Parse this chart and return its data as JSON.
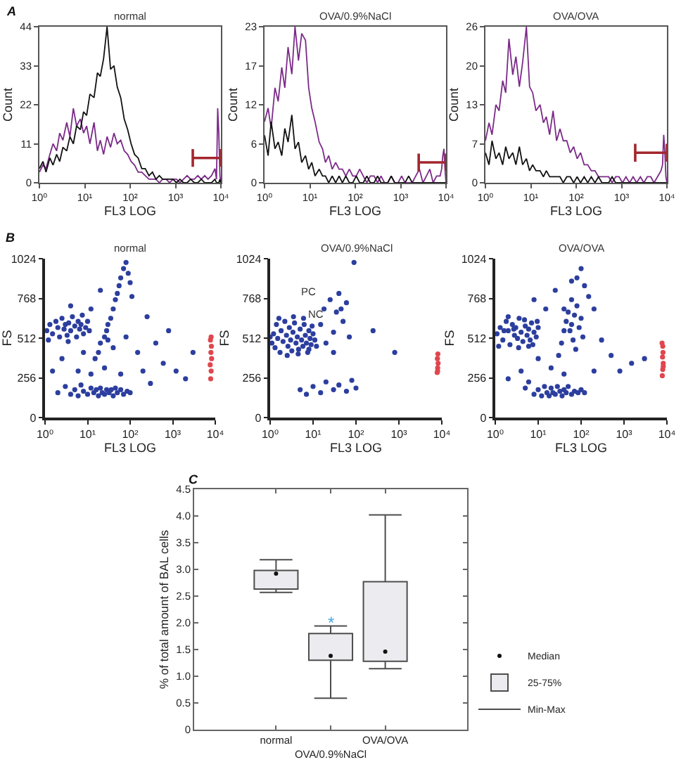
{
  "chart_data": [
    {
      "type": "line",
      "title": "normal",
      "xlabel": "FL3 LOG",
      "ylabel": "Count",
      "log": "x",
      "xlim": [
        1,
        10000
      ],
      "xticks": [
        {
          "value": 1,
          "label": "10⁰"
        },
        {
          "value": 10,
          "label": "10¹"
        },
        {
          "value": 100,
          "label": "10²"
        },
        {
          "value": 1000,
          "label": "10³"
        },
        {
          "value": 10000,
          "label": "10⁴"
        }
      ],
      "ylim": [
        0,
        44
      ],
      "yticks": [
        0,
        11,
        22,
        33,
        44
      ],
      "annotations": [
        "A"
      ],
      "x": [
        1,
        1.2,
        1.4,
        1.7,
        2,
        2.4,
        2.8,
        3.3,
        4,
        4.7,
        5.6,
        6.6,
        8,
        9.4,
        11,
        13,
        16,
        19,
        22,
        26,
        31,
        37,
        44,
        52,
        62,
        74,
        88,
        105,
        125,
        150,
        180,
        215,
        260,
        310,
        370,
        440,
        520,
        620,
        740,
        880,
        1050,
        1250,
        1500,
        1800,
        2150,
        2600,
        3100,
        3700,
        4400,
        5200,
        6200,
        7400,
        8000,
        8500,
        9000,
        9500,
        10000
      ],
      "series": [
        {
          "color": "#7b2a88",
          "values": [
            3,
            5,
            4,
            8,
            11,
            9,
            14,
            12,
            17,
            13,
            21,
            16,
            18,
            14,
            16,
            11,
            17,
            9,
            12,
            8,
            13,
            10,
            14,
            11,
            12,
            9,
            8,
            6,
            5,
            3,
            3,
            2,
            1,
            1,
            1,
            0,
            1,
            1,
            0,
            1,
            1,
            0,
            1,
            2,
            1,
            1,
            2,
            1,
            2,
            1,
            2,
            4,
            1,
            21,
            14,
            2,
            0
          ]
        },
        {
          "color": "#111111",
          "values": [
            4,
            6,
            3,
            7,
            5,
            8,
            6,
            10,
            9,
            13,
            11,
            16,
            15,
            20,
            19,
            25,
            24,
            31,
            30,
            35,
            44,
            32,
            33,
            27,
            24,
            18,
            15,
            11,
            8,
            7,
            4,
            4,
            2,
            3,
            1,
            2,
            1,
            1,
            1,
            1,
            0,
            1,
            0,
            0,
            1,
            0,
            0,
            1,
            0,
            0,
            0,
            1,
            0,
            0,
            0,
            1,
            0
          ]
        },
        {
          "color": "#a3262e",
          "x": [
            2400,
            10000
          ],
          "values": [
            7,
            7
          ],
          "errors": [
            2.5,
            2.5
          ]
        }
      ]
    },
    {
      "type": "line",
      "title": "OVA/0.9%NaCl",
      "xlabel": "FL3 LOG",
      "ylabel": "Count",
      "log": "x",
      "xlim": [
        1,
        10000
      ],
      "xticks": [
        {
          "value": 1,
          "label": "10⁰"
        },
        {
          "value": 10,
          "label": "10¹"
        },
        {
          "value": 100,
          "label": "10²"
        },
        {
          "value": 1000,
          "label": "10³"
        },
        {
          "value": 10000,
          "label": "10⁴"
        }
      ],
      "ylim": [
        0,
        23
      ],
      "yticks": [
        0,
        {
          "value": 5.75,
          "label": "6"
        },
        {
          "value": 11.5,
          "label": "12"
        },
        {
          "value": 17.25,
          "label": "17"
        },
        23
      ],
      "x": [
        1,
        1.2,
        1.4,
        1.7,
        2,
        2.4,
        2.8,
        3.3,
        4,
        4.7,
        5.6,
        6.6,
        8,
        9.4,
        11,
        13,
        16,
        19,
        22,
        26,
        31,
        37,
        44,
        52,
        62,
        74,
        88,
        105,
        125,
        150,
        180,
        215,
        260,
        310,
        370,
        440,
        520,
        620,
        740,
        880,
        1050,
        1250,
        1500,
        1800,
        2150,
        2600,
        3100,
        3700,
        4400,
        5200,
        6200,
        7400,
        8000,
        8500,
        9000,
        9500,
        10000
      ],
      "series": [
        {
          "color": "#7b2a88",
          "values": [
            9,
            11,
            8,
            14,
            12,
            17,
            14,
            20,
            16,
            23,
            18,
            22,
            21,
            14,
            11,
            9,
            6,
            5,
            3,
            4,
            2,
            3,
            2,
            2,
            1,
            2,
            1,
            1,
            2,
            1,
            0,
            1,
            1,
            0,
            1,
            0,
            0,
            1,
            0,
            0,
            1,
            0,
            0,
            0,
            1,
            2,
            0,
            1,
            2,
            0,
            1,
            1,
            2,
            4,
            5,
            2,
            0
          ]
        },
        {
          "color": "#111111",
          "values": [
            7,
            4,
            9,
            5,
            6,
            4,
            8,
            6,
            10,
            5,
            6,
            3,
            4,
            2,
            3,
            1,
            2,
            1,
            1,
            0,
            1,
            0,
            1,
            0,
            1,
            0,
            0,
            1,
            0,
            0,
            1,
            0,
            0,
            1,
            0,
            0,
            0,
            1,
            0,
            0,
            0,
            0,
            1,
            0,
            0,
            0,
            0,
            0,
            0,
            0,
            0,
            0,
            0,
            0,
            0,
            0,
            0
          ]
        },
        {
          "color": "#a3262e",
          "x": [
            2500,
            10000
          ],
          "values": [
            3,
            3
          ],
          "errors": [
            1.3,
            1.3
          ]
        }
      ]
    },
    {
      "type": "line",
      "title": "OVA/OVA",
      "xlabel": "FL3 LOG",
      "ylabel": "Count",
      "log": "x",
      "xlim": [
        1,
        10000
      ],
      "xticks": [
        {
          "value": 1,
          "label": "10⁰"
        },
        {
          "value": 10,
          "label": "10¹"
        },
        {
          "value": 100,
          "label": "10²"
        },
        {
          "value": 1000,
          "label": "10³"
        },
        {
          "value": 10000,
          "label": "10⁴"
        }
      ],
      "ylim": [
        0,
        26
      ],
      "yticks": [
        0,
        {
          "value": 6.5,
          "label": "7"
        },
        13,
        {
          "value": 19.5,
          "label": "20"
        },
        26
      ],
      "x": [
        1,
        1.2,
        1.4,
        1.7,
        2,
        2.4,
        2.8,
        3.3,
        4,
        4.7,
        5.6,
        6.6,
        8,
        9.4,
        11,
        13,
        16,
        19,
        22,
        26,
        31,
        37,
        44,
        52,
        62,
        74,
        88,
        105,
        125,
        150,
        180,
        215,
        260,
        310,
        370,
        440,
        520,
        620,
        740,
        880,
        1050,
        1250,
        1500,
        1800,
        2150,
        2600,
        3100,
        3700,
        4400,
        5200,
        6200,
        7400,
        8000,
        8500,
        9000,
        9500,
        10000
      ],
      "series": [
        {
          "color": "#7b2a88",
          "values": [
            7,
            10,
            8,
            13,
            12,
            17,
            15,
            24,
            18,
            21,
            16,
            20,
            26,
            16,
            15,
            12,
            13,
            10,
            11,
            8,
            12,
            7,
            9,
            7,
            7,
            5,
            6,
            4,
            5,
            3,
            3,
            2,
            2,
            1,
            1,
            1,
            1,
            0,
            1,
            1,
            0,
            1,
            0,
            1,
            0,
            1,
            0,
            1,
            1,
            0,
            1,
            2,
            3,
            8,
            5,
            1,
            0
          ]
        },
        {
          "color": "#111111",
          "values": [
            5,
            3,
            7,
            4,
            5,
            3,
            6,
            4,
            5,
            3,
            6,
            3,
            4,
            2,
            3,
            2,
            2,
            1,
            2,
            1,
            1,
            1,
            1,
            0,
            1,
            1,
            0,
            1,
            0,
            1,
            0,
            1,
            0,
            1,
            0,
            0,
            0,
            1,
            0,
            0,
            0,
            0,
            0,
            0,
            0,
            0,
            0,
            0,
            0,
            0,
            0,
            0,
            0,
            0,
            0,
            0,
            0
          ]
        },
        {
          "color": "#a3262e",
          "x": [
            2000,
            10000
          ],
          "values": [
            5,
            5
          ],
          "errors": [
            1.5,
            1.5
          ]
        }
      ]
    },
    {
      "type": "scatter",
      "title": "normal",
      "xlabel": "FL3 LOG",
      "ylabel": "FS",
      "log": "x",
      "marker": "circle",
      "xlim": [
        1,
        10000
      ],
      "xticks": [
        {
          "value": 1,
          "label": "10⁰"
        },
        {
          "value": 10,
          "label": "10¹"
        },
        {
          "value": 100,
          "label": "10²"
        },
        {
          "value": 1000,
          "label": "10³"
        },
        {
          "value": 10000,
          "label": "10⁴"
        }
      ],
      "ylim": [
        0,
        1024
      ],
      "yticks": [
        0,
        256,
        512,
        768,
        1024
      ],
      "annotations": [
        "B"
      ],
      "series": [
        {
          "color": "#2c3e9e",
          "x": [
            1.1,
            1.3,
            1.5,
            1.8,
            2,
            2.2,
            2.5,
            2.8,
            3,
            3.3,
            3.6,
            4,
            4.4,
            5,
            5.5,
            6,
            6.5,
            7,
            8,
            9,
            10,
            11,
            1.2,
            3.5,
            7.5,
            2,
            3,
            4,
            5,
            6,
            7,
            8,
            10,
            12,
            14,
            16,
            18,
            20,
            22,
            25,
            28,
            32,
            36,
            40,
            45,
            50,
            60,
            70,
            85,
            100,
            15,
            18,
            20,
            25,
            28,
            30,
            35,
            40,
            45,
            50,
            55,
            60,
            70,
            80,
            90,
            100,
            110,
            30,
            1.5,
            2.5,
            4,
            6,
            8,
            12,
            12,
            20,
            25,
            40,
            60,
            80,
            150,
            200,
            250,
            300,
            400,
            600,
            800,
            1200,
            2000,
            3000
          ],
          "values": [
            560,
            600,
            540,
            620,
            580,
            520,
            640,
            570,
            600,
            530,
            610,
            560,
            650,
            590,
            520,
            620,
            570,
            600,
            540,
            580,
            620,
            560,
            500,
            490,
            660,
            160,
            200,
            150,
            180,
            140,
            210,
            170,
            150,
            190,
            160,
            180,
            140,
            190,
            160,
            150,
            180,
            160,
            180,
            140,
            190,
            160,
            180,
            150,
            170,
            160,
            380,
            420,
            480,
            520,
            560,
            600,
            640,
            700,
            760,
            800,
            850,
            900,
            960,
            1000,
            930,
            870,
            780,
            500,
            300,
            380,
            720,
            300,
            420,
            700,
            280,
            820,
            320,
            450,
            280,
            520,
            420,
            300,
            650,
            220,
            480,
            350,
            560,
            300,
            250,
            420
          ]
        },
        {
          "color": "#e0464e",
          "x": [
            7800,
            8000,
            7600,
            8200,
            7900,
            8100,
            7700,
            8000
          ],
          "values": [
            250,
            300,
            340,
            380,
            420,
            460,
            500,
            520
          ]
        }
      ]
    },
    {
      "type": "scatter",
      "title": "OVA/0.9%NaCl",
      "xlabel": "FL3 LOG",
      "ylabel": "FS",
      "log": "x",
      "marker": "circle",
      "xlim": [
        1,
        10000
      ],
      "xticks": [
        {
          "value": 1,
          "label": "10⁰"
        },
        {
          "value": 10,
          "label": "10¹"
        },
        {
          "value": 100,
          "label": "10²"
        },
        {
          "value": 1000,
          "label": "10³"
        },
        {
          "value": 10000,
          "label": "10⁴"
        }
      ],
      "ylim": [
        0,
        1024
      ],
      "yticks": [
        0,
        256,
        512,
        768,
        1024
      ],
      "annotations": [
        "PC",
        "NC"
      ],
      "series": [
        {
          "color": "#2c3e9e",
          "x": [
            1.1,
            1.2,
            1.3,
            1.4,
            1.5,
            1.7,
            1.8,
            2,
            2.2,
            2.4,
            2.6,
            2.8,
            3,
            3.2,
            3.4,
            3.7,
            4,
            4.3,
            4.6,
            5,
            5.4,
            5.8,
            6.2,
            6.6,
            7,
            7.5,
            8,
            8.5,
            9,
            10,
            11,
            12,
            1.6,
            2.5,
            3.5,
            4.5,
            6,
            8,
            1,
            9.5,
            15,
            18,
            20,
            25,
            30,
            35,
            40,
            50,
            60,
            45,
            70,
            90,
            30,
            10,
            15,
            20,
            30,
            40,
            60,
            80,
            100,
            5,
            7,
            800,
            250
          ],
          "values": [
            480,
            540,
            450,
            600,
            510,
            420,
            560,
            490,
            620,
            530,
            460,
            580,
            500,
            430,
            550,
            610,
            480,
            520,
            440,
            570,
            500,
            460,
            600,
            530,
            480,
            420,
            560,
            510,
            470,
            540,
            500,
            460,
            640,
            400,
            650,
            410,
            640,
            440,
            520,
            590,
            600,
            700,
            480,
            760,
            550,
            680,
            800,
            620,
            740,
            700,
            520,
            1000,
            420,
            200,
            160,
            230,
            180,
            210,
            170,
            240,
            190,
            180,
            150,
            420,
            560
          ]
        },
        {
          "color": "#e0464e",
          "x": [
            7800,
            8000,
            8200,
            7900,
            8100,
            8000
          ],
          "values": [
            290,
            320,
            350,
            380,
            410,
            300
          ]
        }
      ]
    },
    {
      "type": "scatter",
      "title": "OVA/OVA",
      "xlabel": "FL3 LOG",
      "ylabel": "FS",
      "log": "x",
      "marker": "circle",
      "xlim": [
        1,
        10000
      ],
      "xticks": [
        {
          "value": 1,
          "label": "10⁰"
        },
        {
          "value": 10,
          "label": "10¹"
        },
        {
          "value": 100,
          "label": "10²"
        },
        {
          "value": 1000,
          "label": "10³"
        },
        {
          "value": 10000,
          "label": "10⁴"
        }
      ],
      "ylim": [
        0,
        1024
      ],
      "yticks": [
        0,
        256,
        512,
        768,
        1024
      ],
      "series": [
        {
          "color": "#2c3e9e",
          "x": [
            1.1,
            1.3,
            1.5,
            1.8,
            2,
            2.2,
            2.5,
            2.8,
            3,
            3.3,
            3.6,
            4,
            4.4,
            5,
            5.5,
            6,
            6.5,
            7,
            8,
            9,
            10,
            1.2,
            3.5,
            7.5,
            2,
            4.8,
            1.6,
            2.7,
            9.5,
            6,
            8,
            10,
            12,
            14,
            16,
            18,
            20,
            22,
            25,
            28,
            32,
            36,
            40,
            45,
            50,
            60,
            70,
            85,
            100,
            120,
            5,
            6,
            30,
            35,
            40,
            45,
            50,
            55,
            60,
            65,
            70,
            80,
            90,
            100,
            110,
            60,
            40,
            75,
            80,
            100,
            120,
            150,
            60,
            200,
            25,
            15,
            8,
            4,
            10,
            20,
            2,
            300,
            500,
            800,
            1500,
            3000,
            200,
            40
          ],
          "values": [
            540,
            580,
            500,
            620,
            560,
            470,
            600,
            530,
            580,
            510,
            640,
            550,
            490,
            590,
            530,
            570,
            500,
            610,
            550,
            520,
            580,
            460,
            450,
            470,
            650,
            630,
            560,
            570,
            620,
            460,
            150,
            180,
            140,
            200,
            160,
            140,
            190,
            160,
            150,
            200,
            170,
            140,
            180,
            160,
            200,
            150,
            170,
            160,
            180,
            160,
            190,
            230,
            400,
            480,
            560,
            620,
            680,
            560,
            600,
            500,
            660,
            720,
            580,
            640,
            520,
            760,
            700,
            440,
            900,
            960,
            850,
            780,
            880,
            700,
            820,
            700,
            760,
            300,
            380,
            320,
            250,
            500,
            400,
            300,
            350,
            380,
            300,
            280
          ]
        },
        {
          "color": "#e0464e",
          "x": [
            7800,
            8000,
            8200,
            7900,
            8100,
            8000,
            7700,
            8200
          ],
          "values": [
            270,
            310,
            350,
            390,
            420,
            460,
            480,
            330
          ]
        }
      ]
    },
    {
      "type": "box",
      "categories": [
        "normal",
        "OVA/0.9%NaCl",
        "OVA/OVA"
      ],
      "ylabel": "% of total amount of BAL cells",
      "ylim": [
        0,
        4.5
      ],
      "yticks": [
        0,
        0.5,
        {
          "value": 1,
          "label": "1.0"
        },
        1.5,
        {
          "value": 2,
          "label": "2.0"
        },
        2.5,
        {
          "value": 3,
          "label": "3.0"
        },
        3.5,
        {
          "value": 4,
          "label": "4.0"
        },
        4.5
      ],
      "legend": "bottom right",
      "series": [
        {
          "name": "25-75%",
          "type": "box",
          "color": "#ececf0",
          "boxes": [
            {
              "low": 2.57,
              "q1": 2.63,
              "median": 2.92,
              "q3": 2.98,
              "high": 3.18
            },
            {
              "low": 0.59,
              "q1": 1.3,
              "median": 1.38,
              "q3": 1.8,
              "high": 1.94
            },
            {
              "low": 1.14,
              "q1": 1.28,
              "median": 1.46,
              "q3": 2.77,
              "high": 4.02
            }
          ]
        }
      ],
      "annotations": [
        "C",
        "Median",
        "Min-Max",
        {
          "text": "*",
          "x": "OVA/0.9%NaCl",
          "y": 2.07
        }
      ]
    }
  ]
}
